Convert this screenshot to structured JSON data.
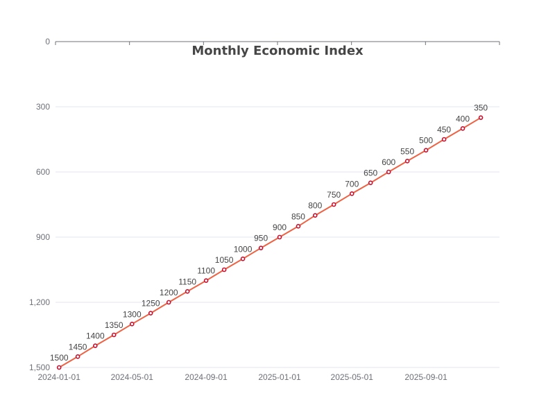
{
  "chart_data": {
    "type": "line",
    "title": "Monthly Economic Index",
    "xlabel": "",
    "ylabel": "",
    "x": [
      "2024-01-01",
      "2024-02-01",
      "2024-03-01",
      "2024-04-01",
      "2024-05-01",
      "2024-06-01",
      "2024-07-01",
      "2024-08-01",
      "2024-09-01",
      "2024-10-01",
      "2024-11-01",
      "2024-12-01",
      "2025-01-01",
      "2025-02-01",
      "2025-03-01",
      "2025-04-01",
      "2025-05-01",
      "2025-06-01",
      "2025-07-01",
      "2025-08-01",
      "2025-09-01",
      "2025-10-01",
      "2025-11-01",
      "2025-12-01"
    ],
    "series": [
      {
        "name": "",
        "values": [
          1500,
          1450,
          1400,
          1350,
          1300,
          1250,
          1200,
          1150,
          1100,
          1050,
          1000,
          950,
          900,
          850,
          800,
          750,
          700,
          650,
          600,
          550,
          500,
          450,
          400,
          350
        ]
      }
    ],
    "data_labels": [
      "1500",
      "1450",
      "1400",
      "1350",
      "1300",
      "1250",
      "1200",
      "1150",
      "1100",
      "1050",
      "1000",
      "950",
      "900",
      "850",
      "800",
      "750",
      "700",
      "650",
      "600",
      "550",
      "500",
      "450",
      "400",
      "350"
    ],
    "y_ticks": [
      0,
      300,
      600,
      900,
      1200,
      1500
    ],
    "y_tick_labels": [
      "0",
      "300",
      "600",
      "900",
      "1,200",
      "1,500"
    ],
    "ylim": [
      0,
      1500
    ],
    "y_inverted": true,
    "x_tick_labels": [
      "2024-01-01",
      "2024-05-01",
      "2024-09-01",
      "2025-01-01",
      "2025-05-01",
      "2025-09-01"
    ],
    "x_tick_indices": [
      0,
      4,
      8,
      12,
      16,
      20
    ],
    "xlim": [
      "2023-12-26",
      "2026-01-01"
    ],
    "grid": true,
    "legend": "none",
    "colors": {
      "line": "#ee6244",
      "marker_stroke": "#c8102e",
      "marker_fill": "#ffffff"
    }
  }
}
